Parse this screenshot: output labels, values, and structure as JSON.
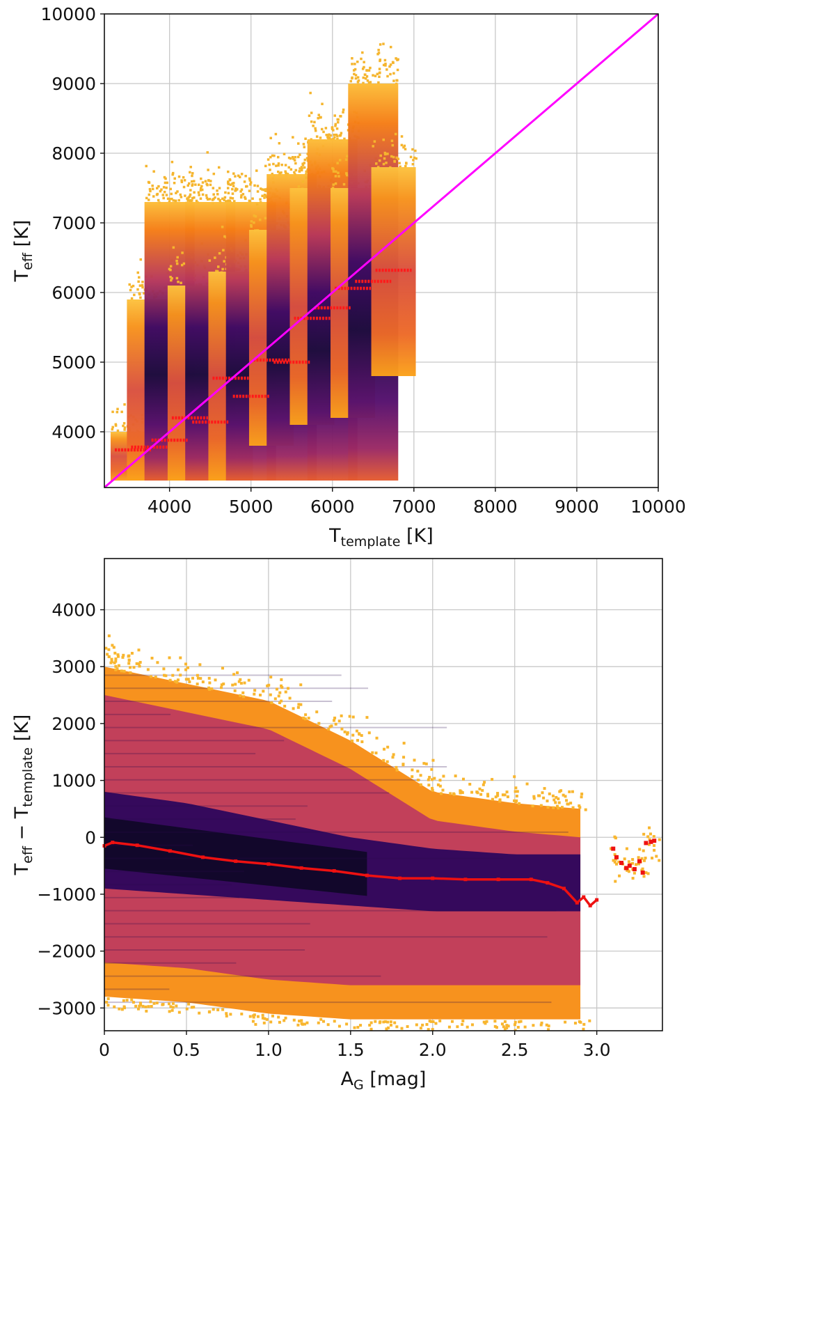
{
  "chart_data": [
    {
      "type": "scatter",
      "subtype": "density-hexbin",
      "xlabel": {
        "main": "T",
        "sub": "template",
        "unit": " [K]"
      },
      "ylabel": {
        "main": "T",
        "sub": "eff",
        "unit": " [K]"
      },
      "xlim": [
        3200,
        10000
      ],
      "ylim": [
        3200,
        10000
      ],
      "xticks": [
        4000,
        5000,
        6000,
        7000,
        8000,
        9000,
        10000
      ],
      "yticks": [
        4000,
        5000,
        6000,
        7000,
        8000,
        9000,
        10000
      ],
      "grid": true,
      "colormap": [
        "#000004",
        "#1b0c41",
        "#4a0c6b",
        "#781c6d",
        "#a52c60",
        "#cf4446",
        "#ed6925",
        "#fb9b06",
        "#f7d13d"
      ],
      "identity_line": {
        "color": "#ff00ff",
        "x": [
          3200,
          10000
        ],
        "y": [
          3200,
          10000
        ]
      },
      "columns": [
        {
          "template": 3550,
          "yrange": [
            3300,
            4000
          ],
          "median": 3740,
          "dense": 0.45
        },
        {
          "template": 3750,
          "yrange": [
            3300,
            5900
          ],
          "median": 3780,
          "dense": 0.5
        },
        {
          "template": 4000,
          "yrange": [
            3300,
            7300
          ],
          "median": 3880,
          "dense": 0.95
        },
        {
          "template": 4250,
          "yrange": [
            3300,
            6100
          ],
          "median": 4200,
          "dense": 0.55
        },
        {
          "template": 4500,
          "yrange": [
            3300,
            7300
          ],
          "median": 4140,
          "dense": 1.0
        },
        {
          "template": 4750,
          "yrange": [
            3300,
            6300
          ],
          "median": 4770,
          "dense": 0.55
        },
        {
          "template": 5000,
          "yrange": [
            3300,
            7300
          ],
          "median": 4510,
          "dense": 0.95
        },
        {
          "template": 5250,
          "yrange": [
            3800,
            6900
          ],
          "median": 5030,
          "dense": 0.6
        },
        {
          "template": 5500,
          "yrange": [
            3300,
            7700
          ],
          "median": 5000,
          "dense": 1.0
        },
        {
          "template": 5750,
          "yrange": [
            4100,
            7500
          ],
          "median": 5630,
          "dense": 0.6
        },
        {
          "template": 6000,
          "yrange": [
            3300,
            8200
          ],
          "median": 5780,
          "dense": 0.95
        },
        {
          "template": 6250,
          "yrange": [
            4200,
            7500
          ],
          "median": 6060,
          "dense": 0.6
        },
        {
          "template": 6500,
          "yrange": [
            3300,
            9000
          ],
          "median": 6160,
          "dense": 0.95
        },
        {
          "template": 6750,
          "yrange": [
            4800,
            7800
          ],
          "median": 6320,
          "dense": 0.55
        }
      ]
    },
    {
      "type": "scatter",
      "subtype": "density-hexbin",
      "xlabel": {
        "main": "A",
        "sub": "G",
        "unit": " [mag]"
      },
      "ylabel": {
        "main": "T",
        "sub": "eff",
        "mid": " − T",
        "sub2": "template",
        "unit": " [K]"
      },
      "xlim": [
        0,
        3.4
      ],
      "ylim": [
        -3400,
        4900
      ],
      "xticks": [
        0,
        0.5,
        1.0,
        1.5,
        2.0,
        2.5,
        3.0
      ],
      "xtick_labels": [
        "0",
        "0.5",
        "1.0",
        "1.5",
        "2.0",
        "2.5",
        "3.0"
      ],
      "yticks": [
        -3000,
        -2000,
        -1000,
        0,
        1000,
        2000,
        3000,
        4000
      ],
      "ytick_labels": [
        "−3000",
        "−2000",
        "−1000",
        "0",
        "1000",
        "2000",
        "3000",
        "4000"
      ],
      "grid": true,
      "envelope": {
        "ag": [
          0,
          0.5,
          1.0,
          1.5,
          2.0,
          2.5,
          2.9
        ],
        "upper": [
          3000,
          2700,
          2400,
          1700,
          800,
          600,
          500
        ],
        "lower": [
          -2800,
          -2900,
          -3100,
          -3200,
          -3200,
          -3200,
          -3200
        ],
        "core_upper": [
          800,
          600,
          300,
          0,
          -200,
          -300,
          -300
        ],
        "core_lower": [
          -900,
          -1000,
          -1100,
          -1200,
          -1300,
          -1300,
          -1300
        ]
      },
      "median_curve": {
        "color": "#ee1111",
        "ag": [
          0.0,
          0.05,
          0.2,
          0.4,
          0.6,
          0.8,
          1.0,
          1.2,
          1.4,
          1.6,
          1.8,
          2.0,
          2.2,
          2.4,
          2.6,
          2.7,
          2.8,
          2.88,
          2.92,
          2.96,
          3.0
        ],
        "delta": [
          -150,
          -90,
          -140,
          -240,
          -350,
          -420,
          -470,
          -540,
          -590,
          -670,
          -720,
          -720,
          -740,
          -740,
          -740,
          -800,
          -900,
          -1150,
          -1050,
          -1200,
          -1100
        ]
      },
      "tail_points": [
        {
          "ag": 3.1,
          "delta": -200
        },
        {
          "ag": 3.12,
          "delta": -350
        },
        {
          "ag": 3.15,
          "delta": -450
        },
        {
          "ag": 3.18,
          "delta": -540
        },
        {
          "ag": 3.2,
          "delta": -500
        },
        {
          "ag": 3.23,
          "delta": -560
        },
        {
          "ag": 3.26,
          "delta": -420
        },
        {
          "ag": 3.28,
          "delta": -620
        },
        {
          "ag": 3.3,
          "delta": -100
        },
        {
          "ag": 3.33,
          "delta": -80
        },
        {
          "ag": 3.35,
          "delta": -60
        }
      ]
    }
  ]
}
